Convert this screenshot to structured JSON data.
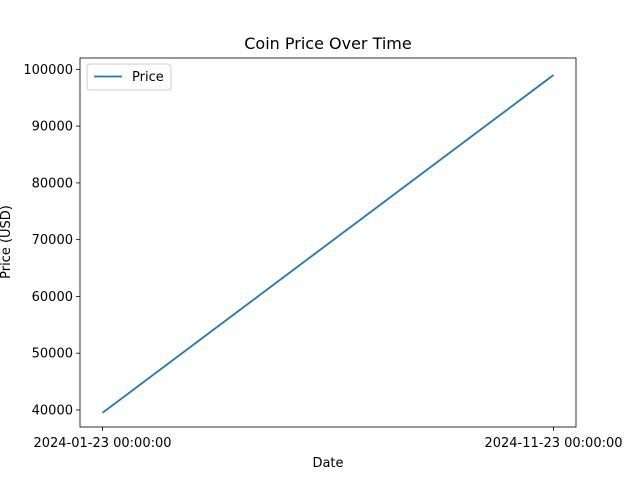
{
  "chart_data": {
    "type": "line",
    "title": "Coin Price Over Time",
    "xlabel": "Date",
    "ylabel": "Price (USD)",
    "x": [
      "2024-01-23 00:00:00",
      "2024-11-23 00:00:00"
    ],
    "x_tick_labels": [
      "2024-01-23 00:00:00",
      "2024-11-23 00:00:00"
    ],
    "y_ticks": [
      40000,
      50000,
      60000,
      70000,
      80000,
      90000,
      100000
    ],
    "y_tick_labels": [
      "40000",
      "50000",
      "60000",
      "70000",
      "80000",
      "90000",
      "100000"
    ],
    "ylim": [
      37000,
      102000
    ],
    "series": [
      {
        "name": "Price",
        "values": [
          39500,
          99000
        ],
        "color": "#1f77b4"
      }
    ],
    "legend": "upper-left",
    "grid": false
  }
}
